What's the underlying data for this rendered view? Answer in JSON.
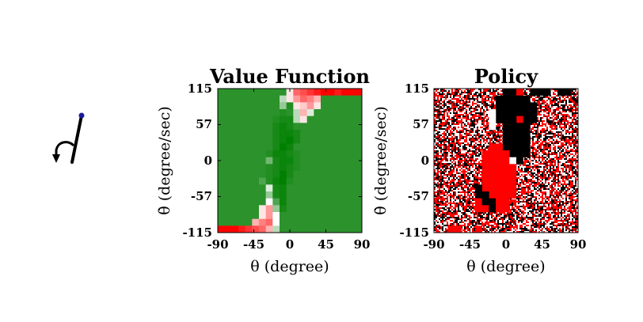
{
  "colors": {
    "green": "#2c922c",
    "red": "#ff0000",
    "black": "#000000",
    "white": "#ffffff",
    "pendulum_tip": "#1a1a99"
  },
  "icons": {
    "pendulum": "pendulum-arrow-icon"
  },
  "chart_data": [
    {
      "type": "heatmap",
      "title": "Value Function",
      "xlabel": "θ (degree)",
      "ylabel": "θ̇ (degree/sec)",
      "xlim": [
        -90,
        90
      ],
      "ylim": [
        -115,
        115
      ],
      "x_ticks": [
        "-90",
        "-45",
        "0",
        "45",
        "90"
      ],
      "y_ticks": [
        "115",
        "57",
        "0",
        "-57",
        "-115"
      ],
      "grid_rows": 21,
      "grid_cols": 21,
      "colormap": "red-white-green",
      "background_value": 0.8,
      "value_cells": [
        [
          0,
          10,
          0.45
        ],
        [
          0,
          11,
          0.2
        ],
        [
          0,
          12,
          0.15
        ],
        [
          0,
          13,
          0.1
        ],
        [
          0,
          14,
          0.05
        ],
        [
          0,
          15,
          0.0
        ],
        [
          0,
          16,
          0.0
        ],
        [
          0,
          17,
          0.05
        ],
        [
          0,
          18,
          0.0
        ],
        [
          0,
          19,
          0.0
        ],
        [
          0,
          20,
          0.0
        ],
        [
          1,
          9,
          0.6
        ],
        [
          1,
          10,
          0.45
        ],
        [
          1,
          11,
          0.3
        ],
        [
          1,
          12,
          0.2
        ],
        [
          1,
          13,
          0.25
        ],
        [
          1,
          14,
          0.35
        ],
        [
          2,
          9,
          0.65
        ],
        [
          2,
          10,
          0.85
        ],
        [
          2,
          11,
          0.45
        ],
        [
          2,
          12,
          0.4
        ],
        [
          2,
          13,
          0.3
        ],
        [
          2,
          14,
          0.45
        ],
        [
          3,
          9,
          0.85
        ],
        [
          3,
          10,
          0.8
        ],
        [
          3,
          11,
          0.6
        ],
        [
          3,
          12,
          0.35
        ],
        [
          3,
          13,
          0.55
        ],
        [
          4,
          8,
          0.85
        ],
        [
          4,
          9,
          0.9
        ],
        [
          4,
          10,
          0.9
        ],
        [
          4,
          11,
          0.6
        ],
        [
          4,
          12,
          0.45
        ],
        [
          5,
          8,
          0.9
        ],
        [
          5,
          9,
          0.95
        ],
        [
          5,
          10,
          0.9
        ],
        [
          5,
          11,
          0.8
        ],
        [
          6,
          8,
          0.9
        ],
        [
          6,
          9,
          0.95
        ],
        [
          6,
          10,
          0.95
        ],
        [
          6,
          11,
          0.9
        ],
        [
          7,
          8,
          0.9
        ],
        [
          7,
          9,
          0.95
        ],
        [
          7,
          10,
          1.0
        ],
        [
          7,
          11,
          0.9
        ],
        [
          8,
          8,
          0.9
        ],
        [
          8,
          9,
          1.0
        ],
        [
          8,
          10,
          0.95
        ],
        [
          9,
          7,
          0.85
        ],
        [
          9,
          8,
          0.95
        ],
        [
          9,
          9,
          0.95
        ],
        [
          9,
          10,
          0.9
        ],
        [
          9,
          11,
          0.85
        ],
        [
          10,
          7,
          0.7
        ],
        [
          10,
          8,
          0.9
        ],
        [
          10,
          9,
          0.95
        ],
        [
          10,
          10,
          0.95
        ],
        [
          10,
          11,
          0.85
        ],
        [
          11,
          7,
          0.85
        ],
        [
          11,
          8,
          0.9
        ],
        [
          11,
          9,
          0.95
        ],
        [
          11,
          10,
          0.9
        ],
        [
          11,
          11,
          0.85
        ],
        [
          12,
          7,
          0.85
        ],
        [
          12,
          8,
          0.9
        ],
        [
          12,
          9,
          1.0
        ],
        [
          12,
          10,
          0.9
        ],
        [
          13,
          6,
          0.75
        ],
        [
          13,
          7,
          0.85
        ],
        [
          13,
          8,
          0.95
        ],
        [
          13,
          9,
          1.0
        ],
        [
          13,
          10,
          0.85
        ],
        [
          14,
          7,
          0.55
        ],
        [
          14,
          8,
          0.9
        ],
        [
          14,
          9,
          0.95
        ],
        [
          15,
          7,
          0.65
        ],
        [
          15,
          8,
          0.9
        ],
        [
          15,
          9,
          0.95
        ],
        [
          16,
          7,
          0.5
        ],
        [
          16,
          8,
          0.75
        ],
        [
          16,
          9,
          0.95
        ],
        [
          17,
          6,
          0.45
        ],
        [
          17,
          7,
          0.3
        ],
        [
          17,
          8,
          0.65
        ],
        [
          17,
          9,
          0.9
        ],
        [
          18,
          6,
          0.45
        ],
        [
          18,
          7,
          0.3
        ],
        [
          18,
          8,
          0.5
        ],
        [
          18,
          9,
          0.8
        ],
        [
          19,
          5,
          0.35
        ],
        [
          19,
          6,
          0.25
        ],
        [
          19,
          7,
          0.2
        ],
        [
          19,
          8,
          0.5
        ],
        [
          20,
          0,
          0.0
        ],
        [
          20,
          1,
          0.0
        ],
        [
          20,
          2,
          0.0
        ],
        [
          20,
          3,
          0.05
        ],
        [
          20,
          4,
          0.1
        ],
        [
          20,
          5,
          0.15
        ],
        [
          20,
          6,
          0.2
        ],
        [
          20,
          7,
          0.35
        ],
        [
          20,
          8,
          0.6
        ]
      ]
    },
    {
      "type": "heatmap",
      "title": "Policy",
      "xlabel": "θ (degree)",
      "ylabel": "θ̇ (degree/sec)",
      "xlim": [
        -90,
        90
      ],
      "ylim": [
        -115,
        115
      ],
      "x_ticks": [
        "-90",
        "-45",
        "0",
        "45",
        "90"
      ],
      "y_ticks": [
        "115",
        "57",
        "0",
        "-57",
        "-115"
      ],
      "grid_rows": 21,
      "grid_cols": 21,
      "noise_fill": "red/white/black speckle",
      "solid_regions": [
        {
          "color": "black",
          "row_start": 0,
          "row_end": 0,
          "col_start": 10,
          "col_end": 11
        },
        {
          "color": "black",
          "row_start": 0,
          "row_end": 0,
          "col_start": 14,
          "col_end": 16
        },
        {
          "color": "black",
          "row_start": 0,
          "row_end": 0,
          "col_start": 18,
          "col_end": 19
        },
        {
          "color": "red",
          "row_start": 0,
          "row_end": 0,
          "col_start": 12,
          "col_end": 12
        },
        {
          "color": "black",
          "row_start": 1,
          "row_end": 1,
          "col_start": 9,
          "col_end": 13
        },
        {
          "color": "black",
          "row_start": 2,
          "row_end": 3,
          "col_start": 9,
          "col_end": 14
        },
        {
          "color": "red",
          "row_start": 4,
          "row_end": 4,
          "col_start": 12,
          "col_end": 12
        },
        {
          "color": "black",
          "row_start": 4,
          "row_end": 4,
          "col_start": 9,
          "col_end": 11
        },
        {
          "color": "black",
          "row_start": 4,
          "row_end": 4,
          "col_start": 13,
          "col_end": 14
        },
        {
          "color": "black",
          "row_start": 5,
          "row_end": 6,
          "col_start": 10,
          "col_end": 13
        },
        {
          "color": "white",
          "row_start": 3,
          "row_end": 5,
          "col_start": 8,
          "col_end": 8
        },
        {
          "color": "black",
          "row_start": 7,
          "row_end": 8,
          "col_start": 10,
          "col_end": 13
        },
        {
          "color": "red",
          "row_start": 8,
          "row_end": 8,
          "col_start": 8,
          "col_end": 9
        },
        {
          "color": "black",
          "row_start": 9,
          "row_end": 9,
          "col_start": 11,
          "col_end": 13
        },
        {
          "color": "red",
          "row_start": 9,
          "row_end": 11,
          "col_start": 7,
          "col_end": 10
        },
        {
          "color": "white",
          "row_start": 10,
          "row_end": 10,
          "col_start": 11,
          "col_end": 11
        },
        {
          "color": "black",
          "row_start": 10,
          "row_end": 10,
          "col_start": 12,
          "col_end": 12
        },
        {
          "color": "red",
          "row_start": 11,
          "row_end": 11,
          "col_start": 11,
          "col_end": 11
        },
        {
          "color": "red",
          "row_start": 12,
          "row_end": 14,
          "col_start": 7,
          "col_end": 11
        },
        {
          "color": "black",
          "row_start": 14,
          "row_end": 14,
          "col_start": 6,
          "col_end": 6
        },
        {
          "color": "red",
          "row_start": 15,
          "row_end": 15,
          "col_start": 8,
          "col_end": 11
        },
        {
          "color": "black",
          "row_start": 15,
          "row_end": 15,
          "col_start": 6,
          "col_end": 7
        },
        {
          "color": "red",
          "row_start": 16,
          "row_end": 16,
          "col_start": 6,
          "col_end": 6
        },
        {
          "color": "black",
          "row_start": 16,
          "row_end": 16,
          "col_start": 7,
          "col_end": 8
        },
        {
          "color": "red",
          "row_start": 16,
          "row_end": 16,
          "col_start": 9,
          "col_end": 10
        },
        {
          "color": "red",
          "row_start": 17,
          "row_end": 17,
          "col_start": 6,
          "col_end": 7
        },
        {
          "color": "black",
          "row_start": 17,
          "row_end": 17,
          "col_start": 8,
          "col_end": 8
        },
        {
          "color": "red",
          "row_start": 17,
          "row_end": 17,
          "col_start": 9,
          "col_end": 10
        },
        {
          "color": "red",
          "row_start": 20,
          "row_end": 20,
          "col_start": 2,
          "col_end": 3
        },
        {
          "color": "red",
          "row_start": 20,
          "row_end": 20,
          "col_start": 6,
          "col_end": 6
        }
      ]
    }
  ]
}
